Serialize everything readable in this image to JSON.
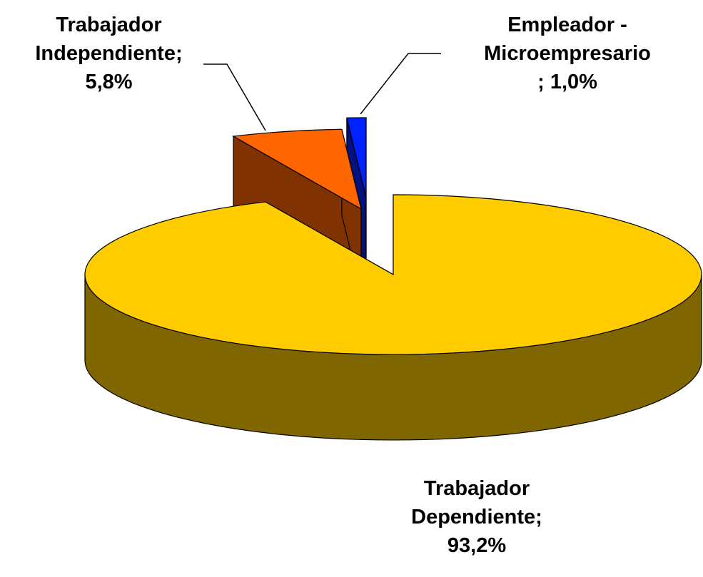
{
  "chart_data": {
    "type": "pie",
    "categories": [
      "Trabajador Dependiente",
      "Trabajador Independiente",
      "Empleador - Microempresario"
    ],
    "values": [
      93.2,
      5.8,
      1.0
    ],
    "value_labels": [
      "93,2%",
      "5,8%",
      "1,0%"
    ],
    "label_separator": ";",
    "colors": [
      "#FFCC00",
      "#FF6600",
      "#0022FF"
    ]
  }
}
